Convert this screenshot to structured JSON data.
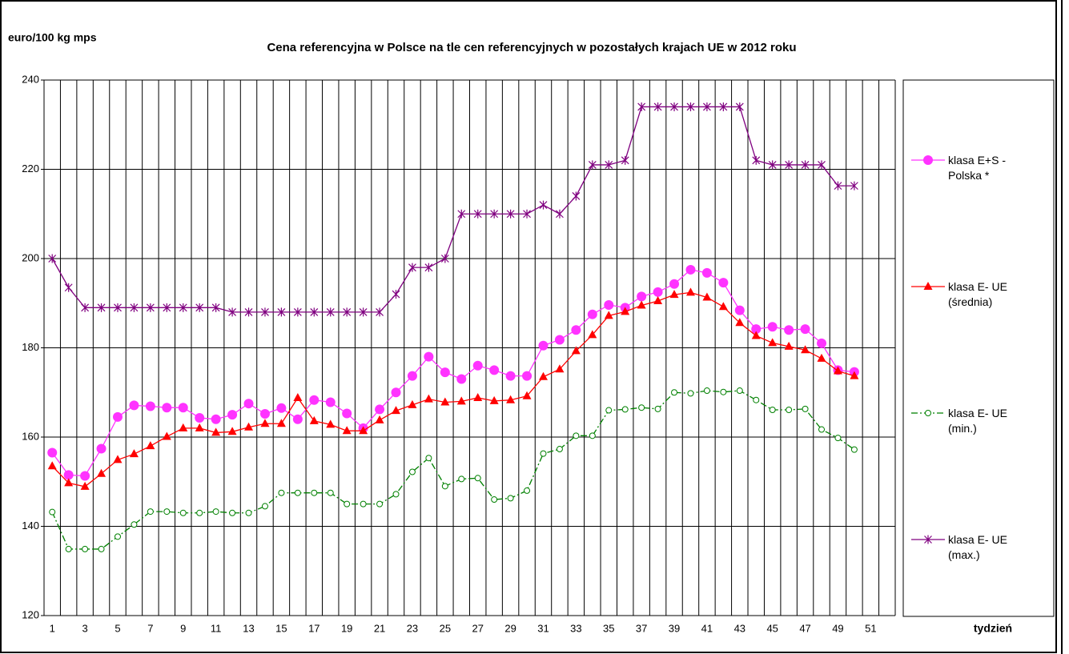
{
  "chart_data": {
    "type": "line",
    "title": "Cena referencyjna w Polsce na tle cen referencyjnych w pozostałych krajach UE w  2012 roku",
    "y_label": "euro/100 kg mps",
    "x_label": "tydzień",
    "categories": [
      1,
      null,
      3,
      null,
      5,
      null,
      7,
      null,
      9,
      null,
      11,
      null,
      13,
      null,
      15,
      null,
      17,
      null,
      19,
      null,
      21,
      null,
      23,
      null,
      25,
      null,
      27,
      null,
      29,
      null,
      31,
      null,
      33,
      null,
      35,
      null,
      37,
      null,
      39,
      null,
      41,
      null,
      43,
      null,
      45,
      null,
      47,
      null,
      49,
      null,
      51,
      null
    ],
    "ylim": [
      120,
      240
    ],
    "yticks": [
      120,
      140,
      160,
      180,
      200,
      220,
      240
    ],
    "grid": true,
    "legend": "right",
    "series": [
      {
        "name": "klasa E+S - Polska *",
        "color": "#ff33ff",
        "marker": "circle",
        "values": [
          156.5,
          151.5,
          151.3,
          157.4,
          164.5,
          167.1,
          166.9,
          166.6,
          166.6,
          164.3,
          164.0,
          165.0,
          167.5,
          165.2,
          166.5,
          164.0,
          168.3,
          167.8,
          165.3,
          162.0,
          166.2,
          170.0,
          173.7,
          178.0,
          174.5,
          173.0,
          176.0,
          175.0,
          173.7,
          173.7,
          180.5,
          181.8,
          184.0,
          187.5,
          189.6,
          189.0,
          191.5,
          192.5,
          194.3,
          197.5,
          196.8,
          194.6,
          188.4,
          184.2,
          184.7,
          184.0,
          184.2,
          181.0,
          175.0,
          174.6,
          null,
          null
        ]
      },
      {
        "name": "klasa E- UE (średnia)",
        "color": "#ff0000",
        "marker": "triangle",
        "values": [
          153.5,
          149.7,
          148.9,
          151.8,
          154.9,
          156.2,
          158.0,
          160.1,
          162.0,
          162.0,
          161.0,
          161.2,
          162.2,
          163.0,
          163.0,
          168.8,
          163.6,
          162.8,
          161.4,
          161.4,
          163.8,
          165.9,
          167.2,
          168.5,
          167.8,
          168.0,
          168.8,
          168.1,
          168.3,
          169.2,
          173.5,
          175.2,
          179.3,
          182.9,
          187.2,
          188.1,
          189.5,
          190.5,
          191.9,
          192.4,
          191.3,
          189.2,
          185.6,
          182.7,
          181.1,
          180.3,
          179.5,
          177.6,
          174.8,
          173.7,
          null,
          null
        ]
      },
      {
        "name": "klasa E- UE (min.)",
        "color": "#008000",
        "marker": "open-circle",
        "dash": "dash-dot",
        "values": [
          143.2,
          134.9,
          134.9,
          134.9,
          137.7,
          140.4,
          143.3,
          143.3,
          143.0,
          143.0,
          143.3,
          143.0,
          143.0,
          144.5,
          147.5,
          147.5,
          147.5,
          147.5,
          145.0,
          145.0,
          145.0,
          147.2,
          152.2,
          155.3,
          149.0,
          150.6,
          150.8,
          146.0,
          146.3,
          148.0,
          156.3,
          157.3,
          160.3,
          160.3,
          166.0,
          166.2,
          166.6,
          166.3,
          170.0,
          169.8,
          170.4,
          170.1,
          170.4,
          168.3,
          166.1,
          166.1,
          166.3,
          161.7,
          159.8,
          157.2,
          null,
          null
        ]
      },
      {
        "name": "klasa E- UE (max.)",
        "color": "#800080",
        "marker": "asterisk",
        "values": [
          200,
          193.5,
          189,
          189,
          189,
          189,
          189,
          189,
          189,
          189,
          189,
          188,
          188,
          188,
          188,
          188,
          188,
          188,
          188,
          188,
          188,
          192,
          198,
          198,
          200,
          210,
          210,
          210,
          210,
          210,
          212,
          210,
          214,
          221,
          221,
          222,
          234,
          234,
          234,
          234,
          234,
          234,
          234,
          222,
          221,
          221,
          221,
          221,
          216.3,
          216.3,
          null,
          null
        ]
      }
    ]
  }
}
